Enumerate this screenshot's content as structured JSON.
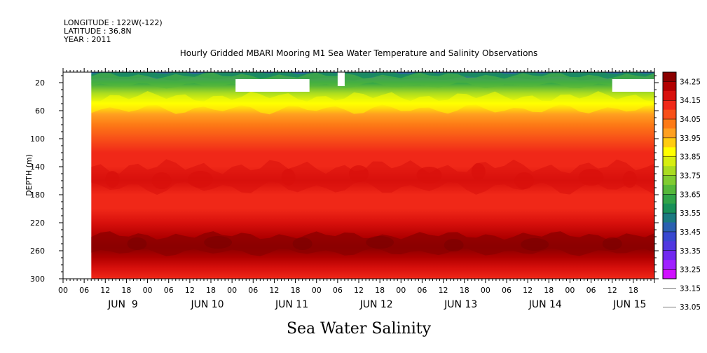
{
  "header": {
    "longitude": "LONGITUDE : 122W(-122)",
    "latitude": "LATITUDE : 36.8N",
    "year": "YEAR : 2011",
    "title": "Hourly Gridded MBARI Mooring M1 Sea Water Temperature and Salinity Observations"
  },
  "footer": {
    "variable": "Sea Water Salinity"
  },
  "chart_data": {
    "type": "heatmap",
    "title": "Hourly Gridded MBARI Mooring M1 Sea Water Temperature and Salinity Observations",
    "ylabel": "DEPTH (m)",
    "xlabel": "",
    "variable": "Sea Water Salinity",
    "y_axis_inverted": true,
    "ylim": [
      300,
      5
    ],
    "y_ticks": [
      20,
      60,
      100,
      140,
      180,
      220,
      260,
      300
    ],
    "x_range_hours": [
      -6,
      162
    ],
    "x_tick_hour_labels": [
      "00",
      "06",
      "12",
      "18",
      "00",
      "06",
      "12",
      "18",
      "00",
      "06",
      "12",
      "18",
      "00",
      "06",
      "12",
      "18",
      "00",
      "06",
      "12",
      "18",
      "00",
      "06",
      "12",
      "18",
      "00",
      "06",
      "12",
      "18"
    ],
    "x_day_labels": [
      "JUN  9",
      "JUN 10",
      "JUN 11",
      "JUN 12",
      "JUN 13",
      "JUN 14",
      "JUN 15"
    ],
    "data_start_hour": 2,
    "missing_regions": [
      {
        "t_start": 43,
        "t_end": 64,
        "depth_top": 15,
        "depth_bottom": 33
      },
      {
        "t_start": 72,
        "t_end": 74,
        "depth_top": 5,
        "depth_bottom": 25
      },
      {
        "t_start": 150,
        "t_end": 162,
        "depth_top": 15,
        "depth_bottom": 33
      }
    ],
    "depth_profile": [
      {
        "depth": 5,
        "salinity": 33.45
      },
      {
        "depth": 20,
        "salinity": 33.62
      },
      {
        "depth": 35,
        "salinity": 33.75
      },
      {
        "depth": 50,
        "salinity": 33.88
      },
      {
        "depth": 65,
        "salinity": 33.97
      },
      {
        "depth": 80,
        "salinity": 34.02
      },
      {
        "depth": 100,
        "salinity": 34.06
      },
      {
        "depth": 120,
        "salinity": 34.1
      },
      {
        "depth": 140,
        "salinity": 34.13
      },
      {
        "depth": 160,
        "salinity": 34.16
      },
      {
        "depth": 180,
        "salinity": 34.14
      },
      {
        "depth": 200,
        "salinity": 34.14
      },
      {
        "depth": 220,
        "salinity": 34.18
      },
      {
        "depth": 240,
        "salinity": 34.22
      },
      {
        "depth": 255,
        "salinity": 34.26
      },
      {
        "depth": 270,
        "salinity": 34.22
      },
      {
        "depth": 285,
        "salinity": 34.18
      },
      {
        "depth": 300,
        "salinity": 34.14
      }
    ],
    "colorbar": {
      "labels": [
        "34.25",
        "34.15",
        "34.05",
        "33.95",
        "33.85",
        "33.75",
        "33.65",
        "33.55",
        "33.45",
        "33.35",
        "33.25",
        "33.15",
        "33.05"
      ],
      "colors": [
        "#ffffff",
        "#8b0000",
        "#b20000",
        "#d8100c",
        "#f02818",
        "#f85018",
        "#fd7a16",
        "#ffa020",
        "#ffcc10",
        "#ffff00",
        "#d6ee10",
        "#aadc20",
        "#80cc30",
        "#55b83a",
        "#30a448",
        "#189058",
        "#1a7a80",
        "#2a60b0",
        "#3848d0",
        "#5038e0",
        "#7028f0",
        "#a020ff",
        "#d010ff"
      ]
    }
  }
}
